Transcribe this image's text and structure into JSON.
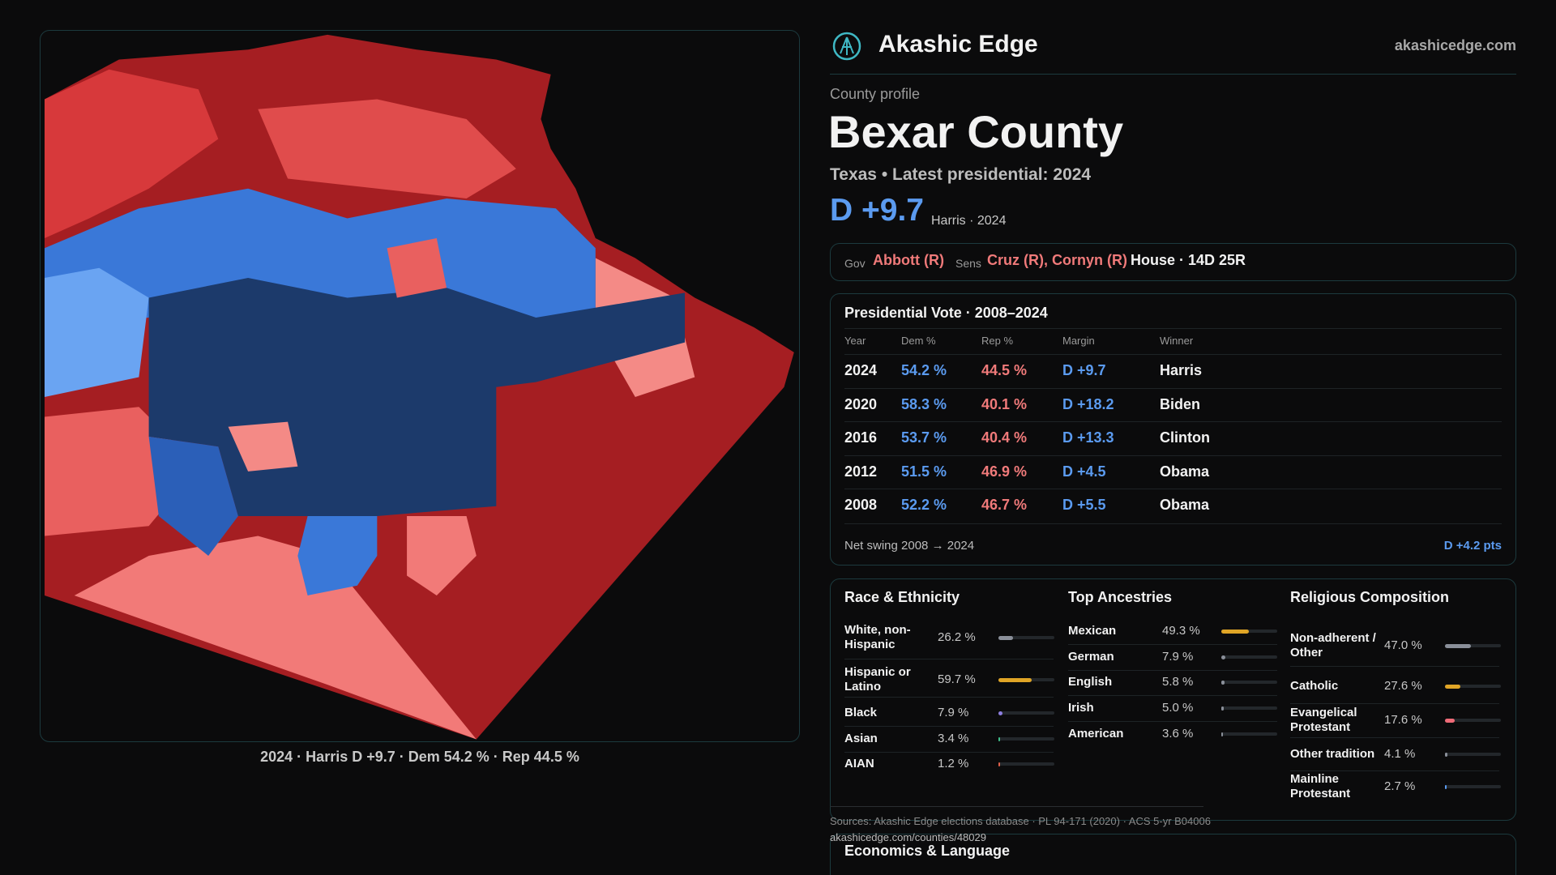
{
  "header": {
    "brand": "Akashic Edge",
    "url": "akashicedge.com"
  },
  "map": {
    "caption": "2024 · Harris D +9.7 · Dem 54.2 % · Rep 44.5 %"
  },
  "profile": {
    "kicker": "County profile",
    "title": "Bexar County",
    "subtitle": "Texas • Latest presidential: 2024",
    "margin": "D +9.7",
    "margin_note": "Harris · 2024"
  },
  "officials": {
    "gov_label": "Gov",
    "gov": "Abbott (R)",
    "sens_label": "Sens",
    "sens": "Cruz (R), Cornyn (R)",
    "house": "House · 14D 25R"
  },
  "presidential": {
    "title": "Presidential Vote · 2008–2024",
    "columns": [
      "Year",
      "Dem %",
      "Rep %",
      "Margin",
      "Winner"
    ],
    "rows": [
      [
        "2024",
        "54.2 %",
        "44.5 %",
        "D +9.7",
        "Harris"
      ],
      [
        "2020",
        "58.3 %",
        "40.1 %",
        "D +18.2",
        "Biden"
      ],
      [
        "2016",
        "53.7 %",
        "40.4 %",
        "D +13.3",
        "Clinton"
      ],
      [
        "2012",
        "51.5 %",
        "46.9 %",
        "D +4.5",
        "Obama"
      ],
      [
        "2008",
        "52.2 %",
        "46.7 %",
        "D +5.5",
        "Obama"
      ]
    ],
    "swing_label": "Net swing 2008 → 2024",
    "swing": "D +4.2 pts"
  },
  "race": {
    "title": "Race & Ethnicity",
    "rows": [
      {
        "label": "White, non-Hispanic",
        "value": 26.2,
        "value_label": "26.2 %",
        "color": "#8a8f99"
      },
      {
        "label": "Hispanic or Latino",
        "value": 59.7,
        "value_label": "59.7 %",
        "color": "#e0a526"
      },
      {
        "label": "Black",
        "value": 7.9,
        "value_label": "7.9 %",
        "color": "#8d7ee0"
      },
      {
        "label": "Asian",
        "value": 3.4,
        "value_label": "3.4 %",
        "color": "#3fbf8a"
      },
      {
        "label": "AIAN",
        "value": 1.2,
        "value_label": "1.2 %",
        "color": "#e0604a"
      }
    ]
  },
  "ancestries": {
    "title": "Top Ancestries",
    "rows": [
      {
        "label": "Mexican",
        "value": 49.3,
        "value_label": "49.3 %",
        "color": "#e0a526"
      },
      {
        "label": "German",
        "value": 7.9,
        "value_label": "7.9 %",
        "color": "#8a8f99"
      },
      {
        "label": "English",
        "value": 5.8,
        "value_label": "5.8 %",
        "color": "#8a8f99"
      },
      {
        "label": "Irish",
        "value": 5.0,
        "value_label": "5.0 %",
        "color": "#8a8f99"
      },
      {
        "label": "American",
        "value": 3.6,
        "value_label": "3.6 %",
        "color": "#8a8f99"
      }
    ]
  },
  "religion": {
    "title": "Religious Composition",
    "rows": [
      {
        "label": "Non-adherent / Other",
        "value": 47.0,
        "value_label": "47.0 %",
        "color": "#8a8f99"
      },
      {
        "label": "Catholic",
        "value": 27.6,
        "value_label": "27.6 %",
        "color": "#e0a526"
      },
      {
        "label": "Evangelical Protestant",
        "value": 17.6,
        "value_label": "17.6 %",
        "color": "#ef6b78"
      },
      {
        "label": "Other tradition",
        "value": 4.1,
        "value_label": "4.1 %",
        "color": "#8a8f99"
      },
      {
        "label": "Mainline Protestant",
        "value": 2.7,
        "value_label": "2.7 %",
        "color": "#5b9bf0"
      }
    ]
  },
  "sources": {
    "text": "Sources: Akashic Edge elections database · PL 94-171 (2020) · ACS 5-yr B04006",
    "link": "akashicedge.com/counties/48029"
  },
  "economics": {
    "title": "Economics & Language"
  }
}
